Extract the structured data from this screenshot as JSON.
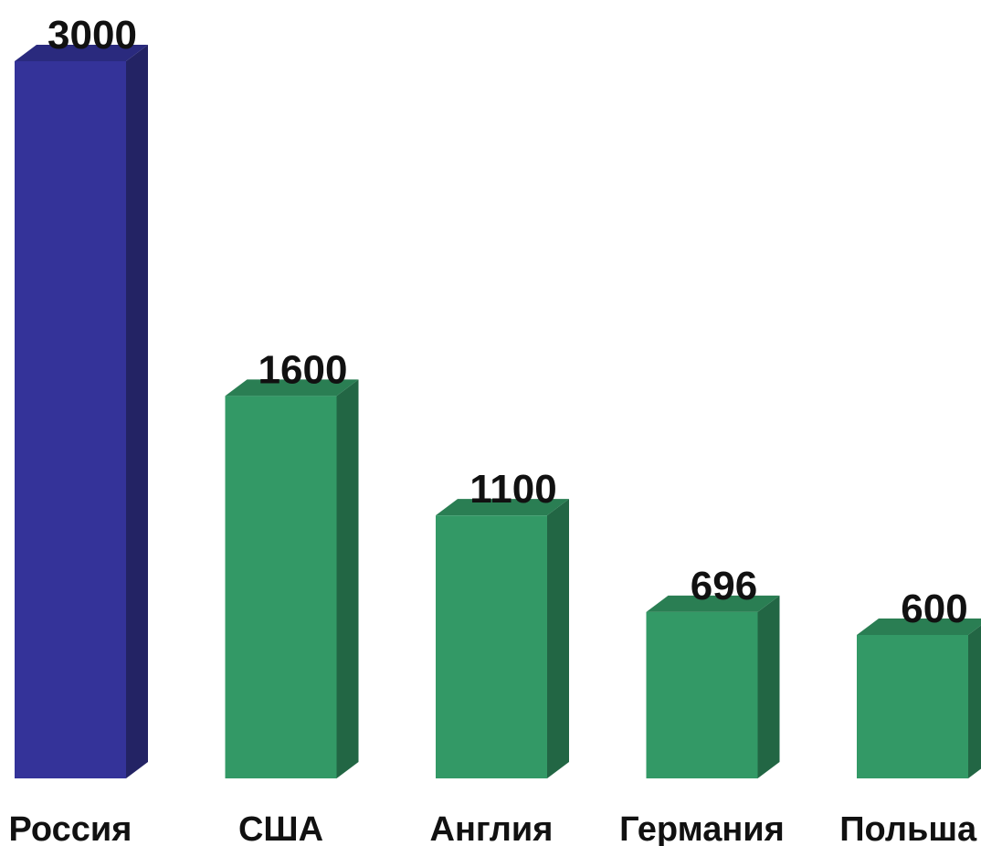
{
  "chart_data": {
    "type": "bar",
    "categories": [
      "Россия",
      "США",
      "Англия",
      "Германия",
      "Польша"
    ],
    "values": [
      3000,
      1600,
      1100,
      696,
      600
    ],
    "data_labels": [
      "3000",
      "1600",
      "1100",
      "696",
      "600"
    ],
    "title": "",
    "xlabel": "",
    "ylabel": "",
    "ylim": [
      0,
      3000
    ],
    "grid": false,
    "legend": "none",
    "style": "3d-column",
    "colors": {
      "highlight_front": "#343399",
      "highlight_side": "#232364",
      "highlight_top": "#2a2a7e",
      "normal_front": "#339966",
      "normal_side": "#226644",
      "normal_top": "#2a7e53"
    },
    "highlight_index": 0
  }
}
